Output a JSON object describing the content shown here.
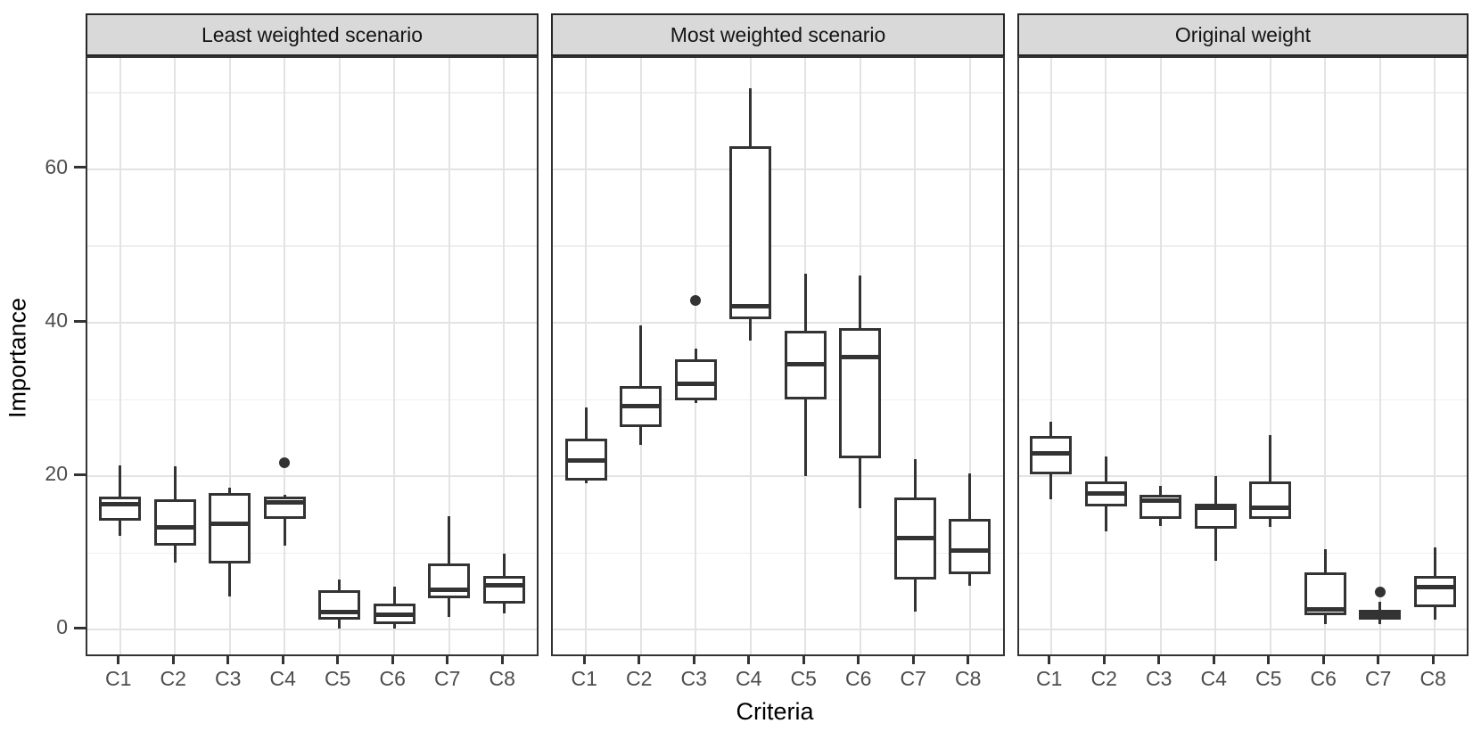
{
  "axes": {
    "x_title": "Criteria",
    "y_title": "Importance",
    "y_ticks": [
      0,
      20,
      40,
      60
    ],
    "categories": [
      "C1",
      "C2",
      "C3",
      "C4",
      "C5",
      "C6",
      "C7",
      "C8"
    ]
  },
  "colors": {
    "box_stroke": "#333333",
    "strip_background": "#d9d9d9",
    "panel_background": "#ffffff",
    "gridline_major": "#e3e3e3",
    "gridline_minor": "#efefef",
    "tick_text": "#4d4d4d"
  },
  "chart_data": {
    "type": "boxplot",
    "facet_by": "scenario",
    "xlabel": "Criteria",
    "ylabel": "Importance",
    "ylim": [
      -3.2,
      74.5
    ],
    "major_gridlines": [
      0,
      20,
      40,
      60
    ],
    "minor_gridlines": [
      10,
      30,
      50,
      70
    ],
    "grid": "on",
    "legend": "none",
    "categories": [
      "C1",
      "C2",
      "C3",
      "C4",
      "C5",
      "C6",
      "C7",
      "C8"
    ],
    "facets": [
      {
        "title": "Least weighted scenario",
        "boxes": [
          {
            "category": "C1",
            "low": 12.2,
            "q1": 14.2,
            "median": 16.4,
            "q3": 17.4,
            "high": 21.4,
            "outliers": []
          },
          {
            "category": "C2",
            "low": 8.8,
            "q1": 11.0,
            "median": 13.3,
            "q3": 17.0,
            "high": 21.3,
            "outliers": []
          },
          {
            "category": "C3",
            "low": 4.3,
            "q1": 8.7,
            "median": 13.8,
            "q3": 17.8,
            "high": 18.5,
            "outliers": []
          },
          {
            "category": "C4",
            "low": 11.0,
            "q1": 14.5,
            "median": 16.6,
            "q3": 17.3,
            "high": 17.6,
            "outliers": [
              21.8
            ]
          },
          {
            "category": "C5",
            "low": 0.2,
            "q1": 1.3,
            "median": 2.3,
            "q3": 5.2,
            "high": 6.5,
            "outliers": []
          },
          {
            "category": "C6",
            "low": 0.2,
            "q1": 0.8,
            "median": 2.0,
            "q3": 3.4,
            "high": 5.6,
            "outliers": []
          },
          {
            "category": "C7",
            "low": 1.7,
            "q1": 4.1,
            "median": 5.2,
            "q3": 8.6,
            "high": 14.8,
            "outliers": []
          },
          {
            "category": "C8",
            "low": 2.1,
            "q1": 3.4,
            "median": 5.8,
            "q3": 7.0,
            "high": 9.9,
            "outliers": []
          }
        ]
      },
      {
        "title": "Most weighted scenario",
        "boxes": [
          {
            "category": "C1",
            "low": 19.1,
            "q1": 19.5,
            "median": 22.1,
            "q3": 24.9,
            "high": 29.0,
            "outliers": []
          },
          {
            "category": "C2",
            "low": 24.1,
            "q1": 26.4,
            "median": 29.1,
            "q3": 31.8,
            "high": 39.6,
            "outliers": []
          },
          {
            "category": "C3",
            "low": 29.6,
            "q1": 29.9,
            "median": 32.0,
            "q3": 35.2,
            "high": 36.6,
            "outliers": [
              42.9
            ]
          },
          {
            "category": "C4",
            "low": 37.7,
            "q1": 40.5,
            "median": 42.1,
            "q3": 63.0,
            "high": 70.6,
            "outliers": []
          },
          {
            "category": "C5",
            "low": 20.0,
            "q1": 30.0,
            "median": 34.6,
            "q3": 39.0,
            "high": 46.4,
            "outliers": []
          },
          {
            "category": "C6",
            "low": 15.9,
            "q1": 22.3,
            "median": 35.5,
            "q3": 39.3,
            "high": 46.2,
            "outliers": []
          },
          {
            "category": "C7",
            "low": 2.4,
            "q1": 6.6,
            "median": 12.0,
            "q3": 17.2,
            "high": 22.2,
            "outliers": []
          },
          {
            "category": "C8",
            "low": 5.8,
            "q1": 7.3,
            "median": 10.3,
            "q3": 14.5,
            "high": 20.4,
            "outliers": []
          }
        ]
      },
      {
        "title": "Original weight",
        "boxes": [
          {
            "category": "C1",
            "low": 17.0,
            "q1": 20.3,
            "median": 23.0,
            "q3": 25.2,
            "high": 27.1,
            "outliers": []
          },
          {
            "category": "C2",
            "low": 12.8,
            "q1": 16.1,
            "median": 17.8,
            "q3": 19.3,
            "high": 22.6,
            "outliers": []
          },
          {
            "category": "C3",
            "low": 13.5,
            "q1": 14.5,
            "median": 16.8,
            "q3": 17.6,
            "high": 18.8,
            "outliers": []
          },
          {
            "category": "C4",
            "low": 9.0,
            "q1": 13.2,
            "median": 15.9,
            "q3": 16.4,
            "high": 20.0,
            "outliers": []
          },
          {
            "category": "C5",
            "low": 13.4,
            "q1": 14.5,
            "median": 15.9,
            "q3": 19.3,
            "high": 25.4,
            "outliers": []
          },
          {
            "category": "C6",
            "low": 0.8,
            "q1": 1.9,
            "median": 2.7,
            "q3": 7.5,
            "high": 10.5,
            "outliers": []
          },
          {
            "category": "C7",
            "low": 0.7,
            "q1": 1.3,
            "median": 2.0,
            "q3": 2.6,
            "high": 3.7,
            "outliers": [
              4.9
            ]
          },
          {
            "category": "C8",
            "low": 1.3,
            "q1": 2.9,
            "median": 5.6,
            "q3": 7.0,
            "high": 10.7,
            "outliers": []
          }
        ]
      }
    ]
  }
}
